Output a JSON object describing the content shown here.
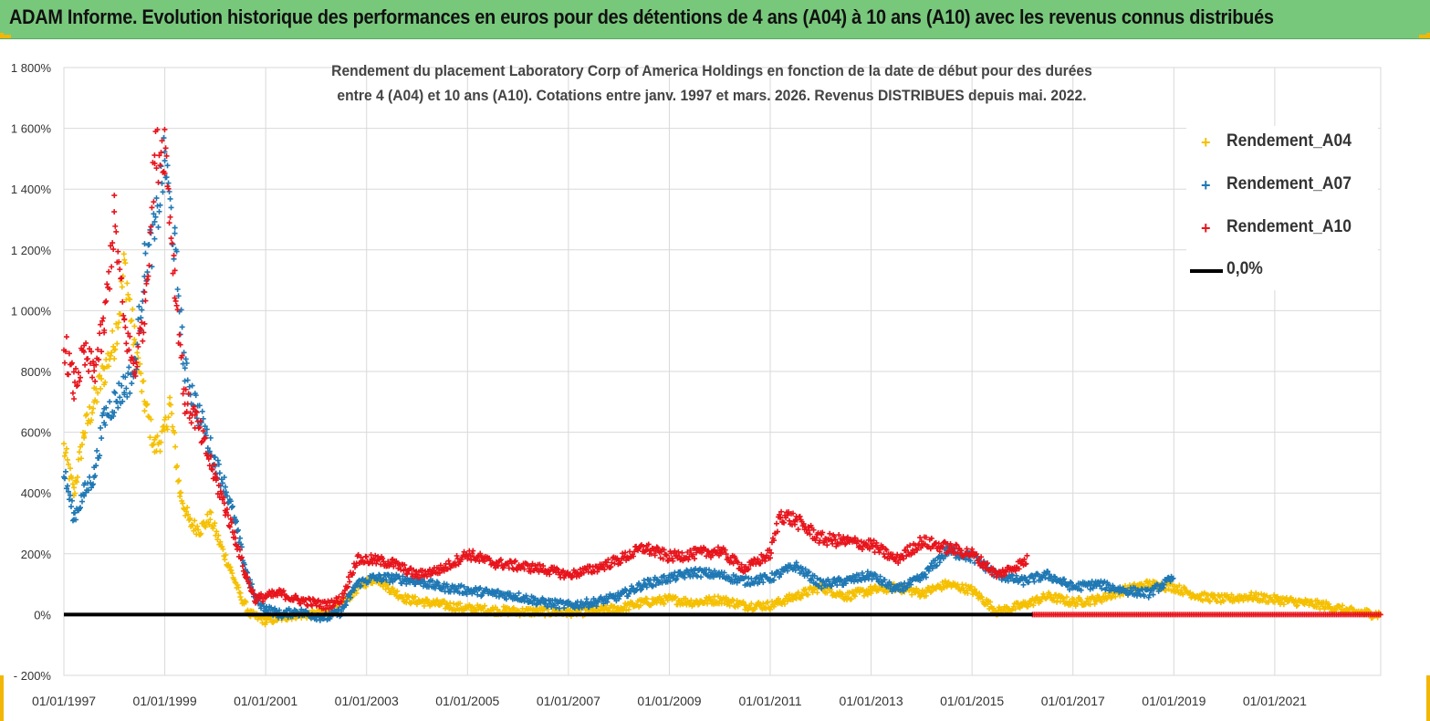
{
  "header": {
    "banner_title": "ADAM Informe. Evolution historique des performances en euros pour des détentions de 4 ans (A04) à 10 ans (A10) avec les revenus connus distribués"
  },
  "colors": {
    "banner": "#78c87c",
    "accent": "#f2b705",
    "A04": "#f5c000",
    "A07": "#1f78b4",
    "A10": "#e8141c",
    "zero": "#000000"
  },
  "chart_data": {
    "type": "scatter",
    "title_line1": "Rendement du placement Laboratory Corp of America Holdings en fonction de la date de début pour des durées",
    "title_line2": "entre 4 (A04) et 10 ans (A10).  Cotations entre janv. 1997 et mars. 2026. Revenus DISTRIBUES depuis mai. 2022.",
    "xlabel": "",
    "ylabel": "",
    "xlim": [
      1997.0,
      2023.1
    ],
    "ylim": [
      -200,
      1800
    ],
    "y_ticks": [
      -200,
      0,
      200,
      400,
      600,
      800,
      1000,
      1200,
      1400,
      1600,
      1800
    ],
    "y_tick_labels": [
      "- 200%",
      "0%",
      "200%",
      "400%",
      "600%",
      "800%",
      "1 000%",
      "1 200%",
      "1 400%",
      "1 600%",
      "1 800%"
    ],
    "x_ticks": [
      1997,
      1999,
      2001,
      2003,
      2005,
      2007,
      2009,
      2011,
      2013,
      2015,
      2017,
      2019,
      2021
    ],
    "x_tick_labels": [
      "01/01/1997",
      "01/01/1999",
      "01/01/2001",
      "01/01/2003",
      "01/01/2005",
      "01/01/2007",
      "01/01/2009",
      "01/01/2011",
      "01/01/2013",
      "01/01/2015",
      "01/01/2017",
      "01/01/2019",
      "01/01/2021"
    ],
    "legend_position": "top-right",
    "series": [
      {
        "name": "Rendement_A04",
        "color": "#f5c000",
        "marker": "+",
        "x": [
          1997.0,
          1997.2,
          1997.4,
          1997.6,
          1997.8,
          1998.0,
          1998.1,
          1998.2,
          1998.4,
          1998.6,
          1998.8,
          1999.0,
          1999.1,
          1999.3,
          1999.5,
          1999.7,
          1999.9,
          2000.1,
          2000.3,
          2000.5,
          2000.7,
          2001.0,
          2001.3,
          2001.6,
          2002.0,
          2002.3,
          2002.6,
          2002.9,
          2003.2,
          2003.5,
          2003.8,
          2004.2,
          2004.6,
          2005.0,
          2005.5,
          2006.0,
          2006.5,
          2007.0,
          2007.5,
          2008.0,
          2008.5,
          2009.0,
          2009.5,
          2010.0,
          2010.5,
          2011.0,
          2011.5,
          2012.0,
          2012.5,
          2013.0,
          2013.5,
          2014.0,
          2014.5,
          2015.0,
          2015.5,
          2016.0,
          2016.5,
          2017.0,
          2017.5,
          2018.0,
          2018.5,
          2019.0,
          2019.5,
          2020.0,
          2020.5,
          2021.0,
          2021.5,
          2022.0,
          2022.5,
          2023.1
        ],
        "y": [
          550,
          400,
          600,
          700,
          800,
          900,
          1000,
          1150,
          900,
          700,
          550,
          600,
          700,
          400,
          300,
          280,
          320,
          230,
          150,
          60,
          0,
          -20,
          -10,
          0,
          0,
          10,
          50,
          100,
          120,
          80,
          50,
          40,
          30,
          20,
          15,
          10,
          10,
          8,
          12,
          20,
          40,
          50,
          40,
          50,
          30,
          30,
          60,
          90,
          60,
          80,
          90,
          70,
          100,
          80,
          10,
          30,
          60,
          40,
          50,
          80,
          100,
          90,
          60,
          50,
          60,
          50,
          40,
          30,
          10,
          0
        ]
      },
      {
        "name": "Rendement_A07",
        "color": "#1f78b4",
        "marker": "+",
        "x": [
          1997.0,
          1997.2,
          1997.4,
          1997.6,
          1997.8,
          1998.0,
          1998.2,
          1998.4,
          1998.6,
          1998.8,
          1999.0,
          1999.2,
          1999.4,
          1999.6,
          1999.8,
          2000.0,
          2000.2,
          2000.4,
          2000.6,
          2000.8,
          2001.0,
          2001.3,
          2001.6,
          2001.9,
          2002.2,
          2002.5,
          2002.8,
          2003.1,
          2003.5,
          2004.0,
          2004.5,
          2005.0,
          2005.5,
          2006.0,
          2006.5,
          2007.0,
          2007.5,
          2008.0,
          2008.5,
          2009.0,
          2009.5,
          2010.0,
          2010.5,
          2011.0,
          2011.5,
          2012.0,
          2012.5,
          2013.0,
          2013.5,
          2014.0,
          2014.5,
          2015.0,
          2015.5,
          2016.0,
          2016.5,
          2017.0,
          2017.5,
          2018.0,
          2018.5,
          2019.0
        ],
        "y": [
          470,
          320,
          400,
          460,
          650,
          700,
          750,
          800,
          1150,
          1250,
          1500,
          1200,
          800,
          700,
          600,
          500,
          420,
          300,
          150,
          50,
          20,
          0,
          10,
          0,
          -10,
          10,
          100,
          120,
          120,
          110,
          90,
          80,
          70,
          60,
          40,
          30,
          40,
          60,
          100,
          120,
          140,
          130,
          110,
          120,
          160,
          100,
          110,
          130,
          80,
          120,
          210,
          190,
          130,
          110,
          130,
          90,
          100,
          80,
          70,
          120
        ]
      },
      {
        "name": "Rendement_A10",
        "color": "#e8141c",
        "marker": "+",
        "x": [
          1997.0,
          1997.2,
          1997.4,
          1997.6,
          1997.8,
          1998.0,
          1998.2,
          1998.4,
          1998.6,
          1998.8,
          1999.0,
          1999.2,
          1999.4,
          1999.6,
          1999.8,
          2000.0,
          2000.2,
          2000.4,
          2000.6,
          2000.8,
          2001.0,
          2001.3,
          2001.6,
          2001.9,
          2002.2,
          2002.5,
          2002.8,
          2003.1,
          2003.5,
          2004.0,
          2004.5,
          2005.0,
          2005.5,
          2006.0,
          2006.5,
          2007.0,
          2007.5,
          2008.0,
          2008.5,
          2009.0,
          2009.5,
          2010.0,
          2010.5,
          2011.0,
          2011.2,
          2011.5,
          2012.0,
          2012.5,
          2013.0,
          2013.5,
          2014.0,
          2014.5,
          2015.0,
          2015.5,
          2016.0,
          2016.1
        ],
        "y": [
          900,
          750,
          850,
          800,
          950,
          1300,
          950,
          800,
          1000,
          1500,
          1550,
          1100,
          700,
          650,
          550,
          450,
          350,
          250,
          130,
          50,
          60,
          70,
          50,
          40,
          30,
          50,
          180,
          180,
          170,
          130,
          150,
          200,
          170,
          160,
          150,
          130,
          150,
          180,
          220,
          190,
          200,
          210,
          150,
          200,
          330,
          310,
          250,
          240,
          230,
          180,
          240,
          220,
          200,
          130,
          170,
          180
        ]
      },
      {
        "name": "Rendement_A10_zero",
        "color": "#e8141c",
        "marker": "+",
        "x": [
          2016.2,
          2023.1
        ],
        "y": [
          0,
          0
        ]
      }
    ],
    "zero_line": {
      "name": "0,0%",
      "y": 0,
      "color": "#000000"
    },
    "legend": [
      {
        "label": "Rendement_A04",
        "marker": "+",
        "color": "#f5c000"
      },
      {
        "label": "Rendement_A07",
        "marker": "+",
        "color": "#1f78b4"
      },
      {
        "label": "Rendement_A10",
        "marker": "+",
        "color": "#e8141c"
      },
      {
        "label": "0,0%",
        "marker": "line",
        "color": "#000000"
      }
    ]
  }
}
